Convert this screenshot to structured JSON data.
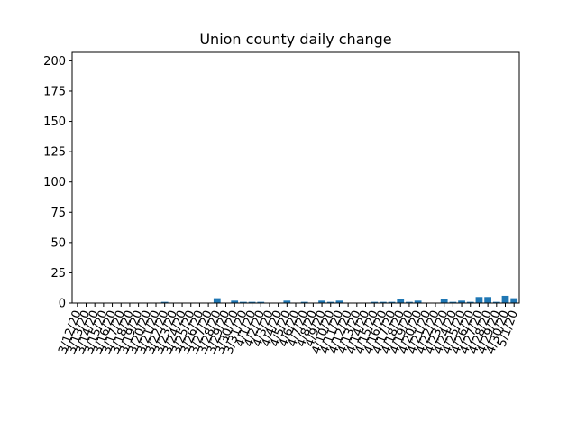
{
  "chart_data": {
    "type": "bar",
    "title": "Union county daily change",
    "xlabel": "",
    "ylabel": "",
    "ylim": [
      0,
      207
    ],
    "yticks": [
      0,
      25,
      50,
      75,
      100,
      125,
      150,
      175,
      200
    ],
    "grid": false,
    "bar_color": "#1f77b4",
    "categories": [
      "3/12/20",
      "3/13/20",
      "3/14/20",
      "3/15/20",
      "3/16/20",
      "3/17/20",
      "3/18/20",
      "3/19/20",
      "3/20/20",
      "3/21/20",
      "3/22/20",
      "3/23/20",
      "3/24/20",
      "3/25/20",
      "3/26/20",
      "3/27/20",
      "3/28/20",
      "3/29/20",
      "3/30/20",
      "3/31/20",
      "4/1/20",
      "4/2/20",
      "4/3/20",
      "4/4/20",
      "4/5/20",
      "4/6/20",
      "4/7/20",
      "4/8/20",
      "4/9/20",
      "4/10/20",
      "4/11/20",
      "4/12/20",
      "4/13/20",
      "4/14/20",
      "4/15/20",
      "4/16/20",
      "4/17/20",
      "4/18/20",
      "4/19/20",
      "4/20/20",
      "4/21/20",
      "4/22/20",
      "4/23/20",
      "4/24/20",
      "4/25/20",
      "4/26/20",
      "4/27/20",
      "4/28/20",
      "4/29/20",
      "4/30/20",
      "5/1/20"
    ],
    "values": [
      0,
      0,
      0,
      0,
      0,
      0,
      0,
      0,
      0,
      0,
      1,
      0,
      0,
      0,
      0,
      0,
      4,
      0,
      2,
      1,
      1,
      1,
      0,
      0,
      2,
      0,
      1,
      0,
      2,
      1,
      2,
      0,
      0,
      0,
      1,
      1,
      1,
      3,
      1,
      2,
      0,
      0,
      3,
      1,
      2,
      1,
      5,
      5,
      1,
      6,
      4
    ],
    "labeled_categories": [
      "3/12/20",
      "3/13/20",
      "3/14/20",
      "3/15/20",
      "3/16/20",
      "3/17/20",
      "3/18/20",
      "3/19/20",
      "3/20/20",
      "3/21/20",
      "3/22/20",
      "3/23/20",
      "3/24/20",
      "3/25/20",
      "3/26/20",
      "3/27/20",
      "3/28/20",
      "3/29/20",
      "3/30/20",
      "3/31/20",
      "4/1/20",
      "4/2/20",
      "4/3/20",
      "4/4/20",
      "4/5/20",
      "4/6/20",
      "4/7/20",
      "4/8/20",
      "4/9/20",
      "4/10/20",
      "4/11/20",
      "4/12/20",
      "4/13/20",
      "4/14/20",
      "4/15/20",
      "4/16/20",
      "4/17/20",
      "4/18/20",
      "4/19/20",
      "4/20/20",
      "4/21/20",
      "4/22/20",
      "4/23/20",
      "4/24/20",
      "4/25/20",
      "4/26/20",
      "4/27/20",
      "4/28/20",
      "4/29/20",
      "4/30/20",
      "5/1/20"
    ]
  }
}
